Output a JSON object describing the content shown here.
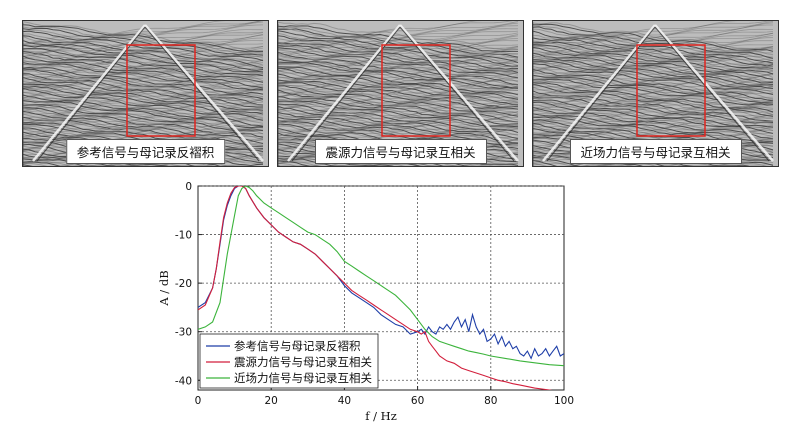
{
  "panels": [
    {
      "label": "参考信号与母记录反褶积"
    },
    {
      "label": "震源力信号与母记录互相关"
    },
    {
      "label": "近场力信号与母记录互相关"
    }
  ],
  "chart_data": {
    "type": "line",
    "xlabel": "f / Hz",
    "ylabel": "A / dB",
    "xlim": [
      0,
      100
    ],
    "ylim": [
      -42,
      0
    ],
    "xticks": [
      "0",
      "20",
      "40",
      "60",
      "80",
      "100"
    ],
    "yticks": [
      "0",
      "-10",
      "-20",
      "-30",
      "-40"
    ],
    "grid": true,
    "legend_position": "bottom-left",
    "series": [
      {
        "name": "参考信号与母记录反褶积",
        "color": "#1f3fa8",
        "x": [
          0,
          2,
          4,
          5,
          6,
          7,
          8,
          9,
          10,
          11,
          12,
          13,
          14,
          16,
          18,
          20,
          22,
          24,
          26,
          28,
          30,
          32,
          34,
          36,
          38,
          40,
          42,
          44,
          46,
          48,
          50,
          52,
          54,
          56,
          58,
          60,
          61,
          62,
          63,
          64,
          65,
          66,
          67,
          68,
          69,
          70,
          71,
          72,
          73,
          74,
          75,
          76,
          77,
          78,
          79,
          80,
          81,
          82,
          83,
          84,
          85,
          86,
          87,
          88,
          89,
          90,
          91,
          92,
          93,
          94,
          95,
          96,
          97,
          98,
          99,
          100
        ],
        "y": [
          -25,
          -24,
          -21,
          -17,
          -12,
          -7,
          -4,
          -2,
          -0.5,
          0,
          0,
          -0.5,
          -2,
          -4.5,
          -6.5,
          -8,
          -9.5,
          -10.5,
          -11.5,
          -12,
          -13,
          -14,
          -15.5,
          -17,
          -18.5,
          -20.5,
          -22,
          -23,
          -24,
          -25,
          -26.5,
          -27.5,
          -28.5,
          -29,
          -30.5,
          -30,
          -29.5,
          -30.5,
          -29,
          -30,
          -30.5,
          -29,
          -29.5,
          -28.5,
          -29.5,
          -28,
          -27,
          -29,
          -27.5,
          -30,
          -26.5,
          -29,
          -30.5,
          -29.5,
          -32,
          -31.5,
          -30.5,
          -32.5,
          -31,
          -33,
          -32,
          -33.5,
          -33,
          -34.5,
          -35,
          -34,
          -35.5,
          -33.5,
          -35,
          -34.5,
          -33.5,
          -35,
          -34,
          -33,
          -35,
          -34.5
        ]
      },
      {
        "name": "震源力信号与母记录互相关",
        "color": "#d21f3c",
        "x": [
          0,
          2,
          4,
          5,
          6,
          7,
          8,
          9,
          10,
          11,
          12,
          13,
          14,
          16,
          18,
          20,
          22,
          24,
          26,
          28,
          30,
          32,
          34,
          36,
          38,
          40,
          42,
          44,
          46,
          48,
          50,
          52,
          54,
          56,
          58,
          60,
          61,
          62,
          63,
          64,
          65,
          66,
          68,
          70,
          72,
          74,
          76,
          78,
          80,
          82,
          84,
          86,
          88,
          90,
          92,
          94,
          96,
          98,
          100
        ],
        "y": [
          -25.5,
          -24.5,
          -21,
          -17,
          -11.5,
          -6.5,
          -3.5,
          -1.5,
          -0.3,
          0,
          0,
          -0.5,
          -2,
          -4.5,
          -6.5,
          -8,
          -9.5,
          -10.5,
          -11.5,
          -12,
          -13,
          -14,
          -15.5,
          -17,
          -18.5,
          -20,
          -21.5,
          -22.5,
          -23.5,
          -24.5,
          -25.5,
          -26.5,
          -27.5,
          -28.5,
          -29.5,
          -30,
          -30.5,
          -30,
          -32,
          -33,
          -34,
          -35,
          -36,
          -36.5,
          -37.5,
          -38,
          -38.5,
          -39,
          -39.5,
          -40,
          -40.3,
          -40.7,
          -41,
          -41.3,
          -41.6,
          -41.8,
          -42,
          -42.3,
          -42.5
        ]
      },
      {
        "name": "近场力信号与母记录互相关",
        "color": "#3cb43c",
        "x": [
          0,
          2,
          4,
          6,
          8,
          10,
          11,
          12,
          13,
          14,
          15,
          16,
          18,
          20,
          22,
          24,
          26,
          28,
          30,
          32,
          34,
          36,
          38,
          40,
          42,
          44,
          46,
          48,
          50,
          52,
          54,
          56,
          58,
          60,
          62,
          64,
          66,
          68,
          70,
          72,
          74,
          76,
          78,
          80,
          84,
          88,
          92,
          96,
          100
        ],
        "y": [
          -29.5,
          -29,
          -28,
          -24,
          -14,
          -6,
          -2,
          -0.5,
          0,
          -0.3,
          -1,
          -2,
          -3.5,
          -4.5,
          -5.5,
          -6.5,
          -7.5,
          -8.5,
          -9.5,
          -10,
          -11,
          -12,
          -13.5,
          -15.5,
          -16.5,
          -17.5,
          -18.5,
          -19.5,
          -20.5,
          -21.5,
          -22.5,
          -24,
          -25.5,
          -27.5,
          -29.5,
          -31,
          -32,
          -32.5,
          -33,
          -33.5,
          -34,
          -34.3,
          -34.6,
          -35,
          -35.5,
          -36,
          -36.4,
          -36.8,
          -37
        ]
      }
    ]
  }
}
